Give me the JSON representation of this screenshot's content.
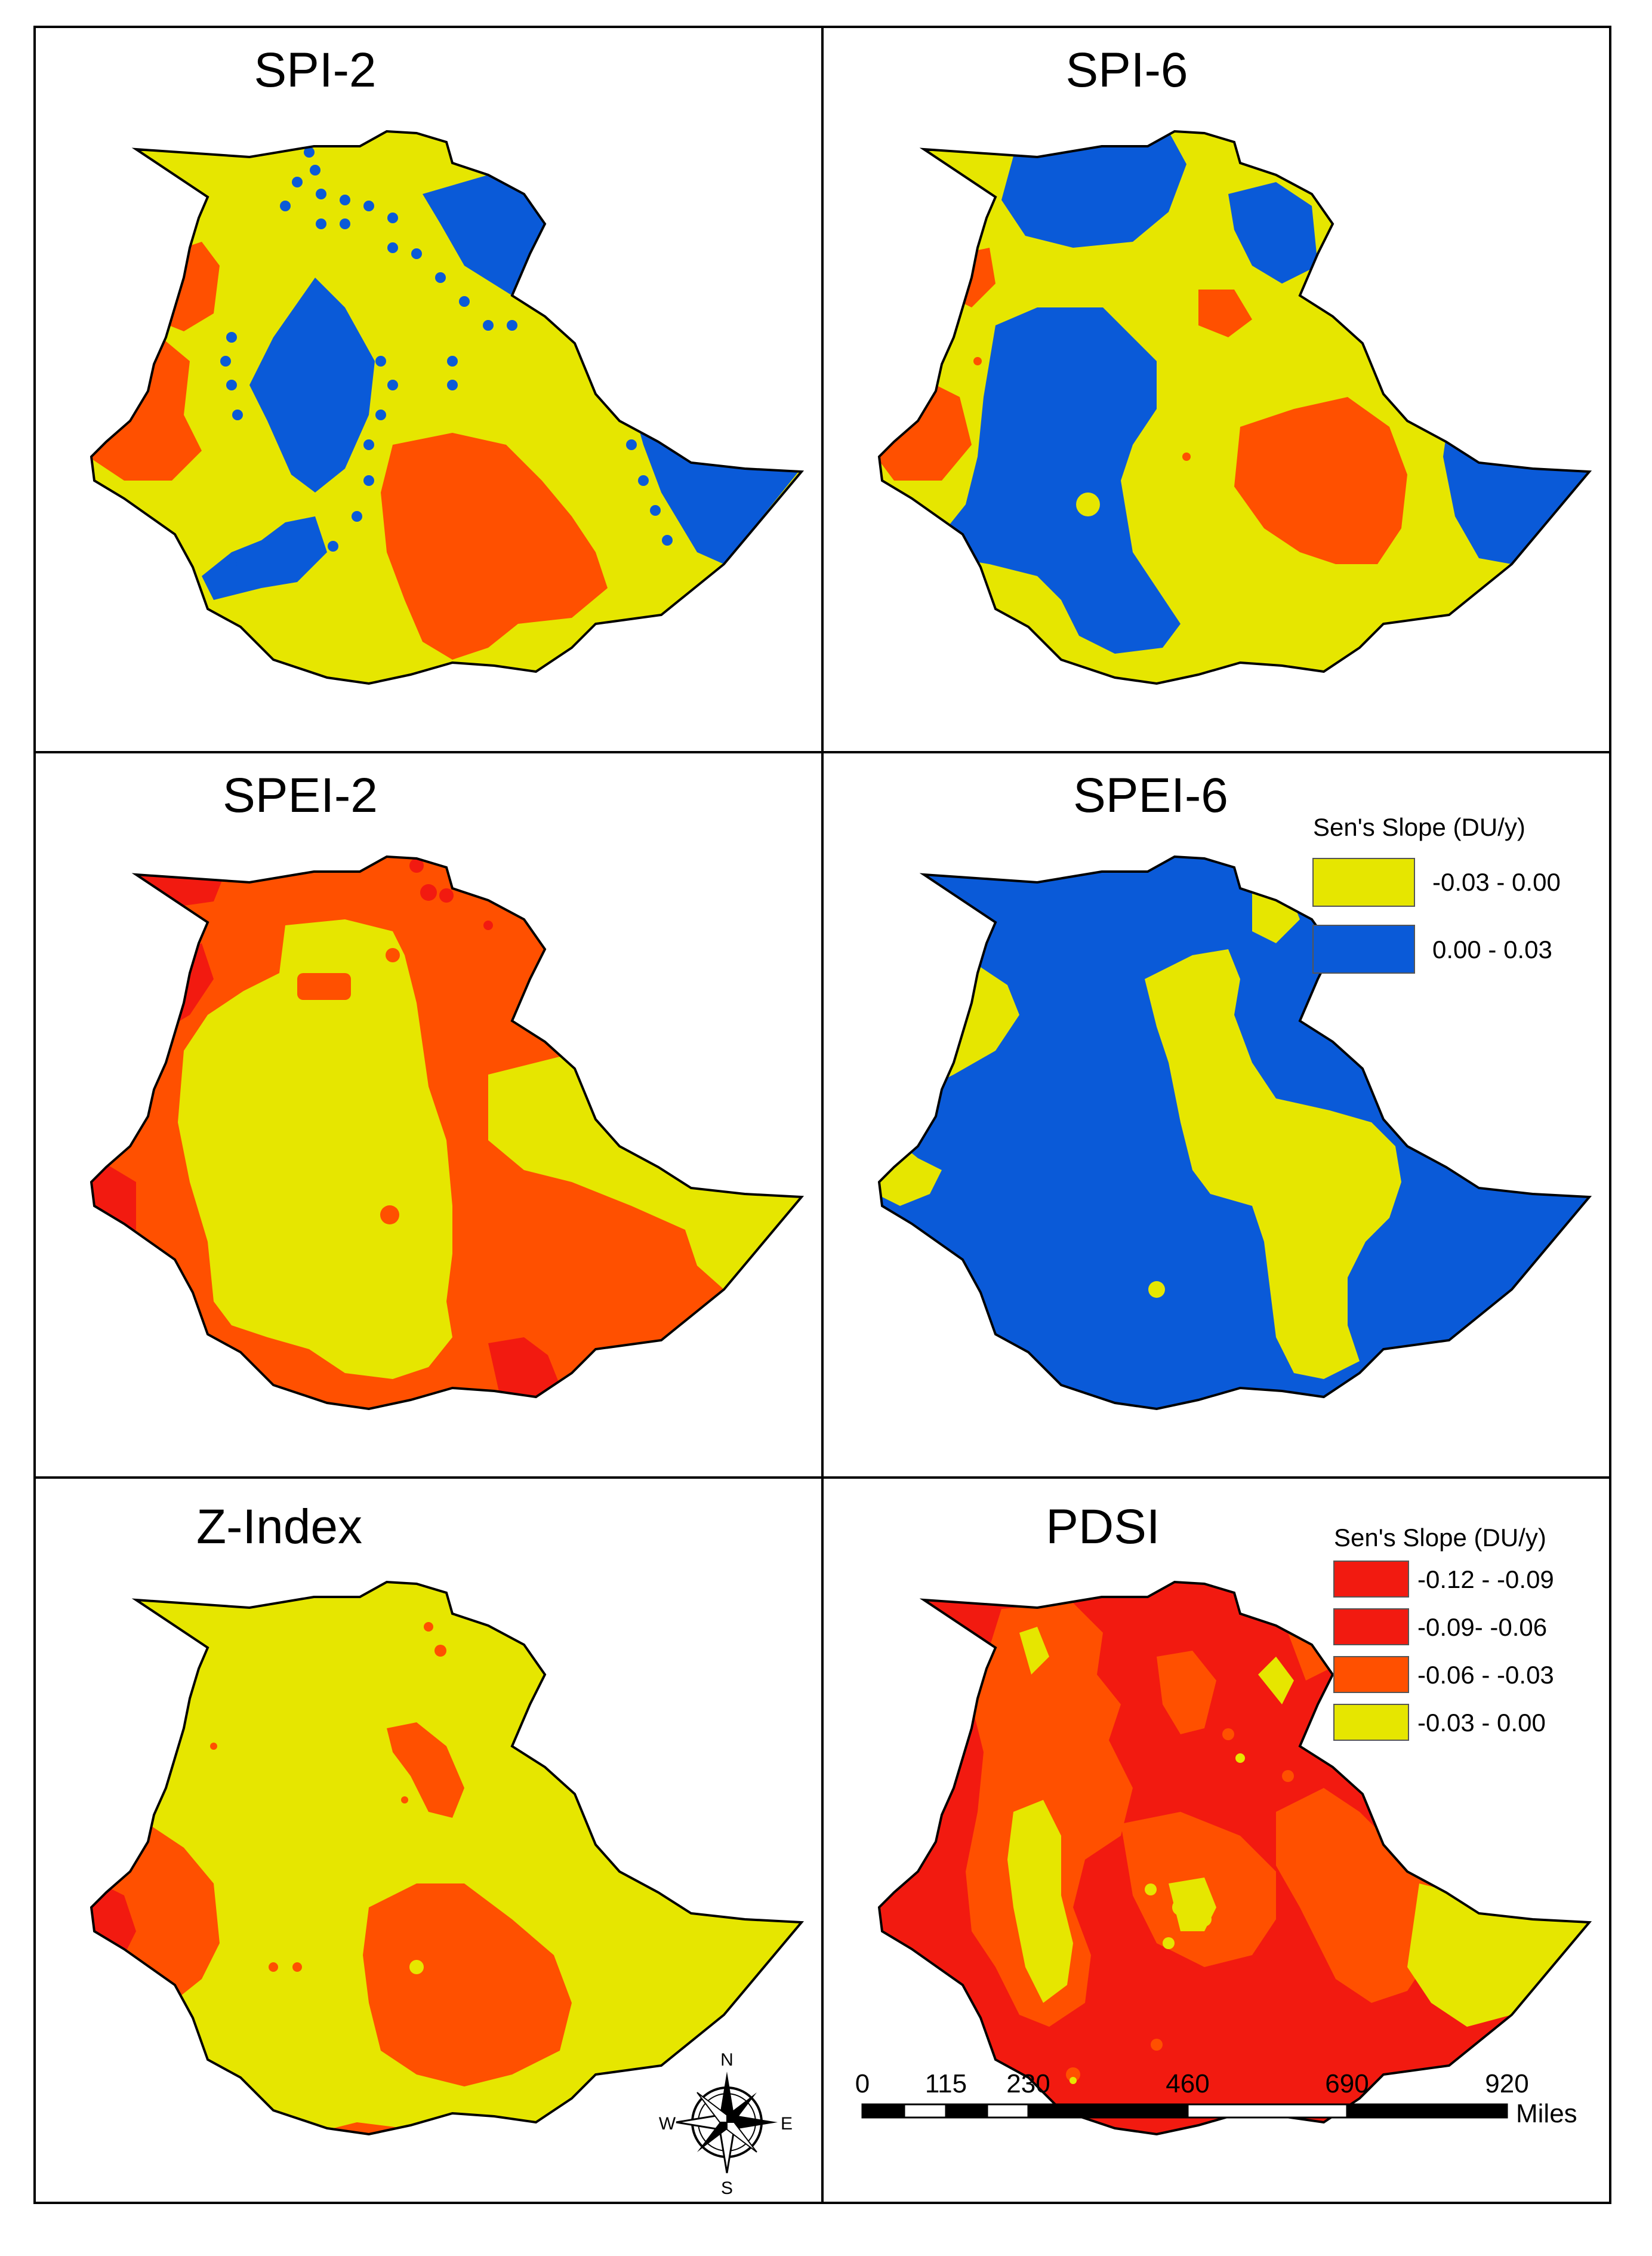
{
  "colors": {
    "yellow": "#e6e600",
    "blue": "#0a5ad8",
    "orange": "#ff5000",
    "red": "#f21a10",
    "outline": "#000000",
    "background": "#ffffff"
  },
  "panels": [
    {
      "title": "SPI-2"
    },
    {
      "title": "SPI-6"
    },
    {
      "title": "SPEI-2"
    },
    {
      "title": "SPEI-6"
    },
    {
      "title": "Z-Index"
    },
    {
      "title": "PDSI"
    }
  ],
  "legend_small": {
    "title": "Sen's Slope (DU/y)",
    "entries": [
      {
        "label": "-0.03 - 0.00",
        "color": "#e6e600"
      },
      {
        "label": "0.00 - 0.03",
        "color": "#0a5ad8"
      }
    ]
  },
  "legend_large": {
    "title": "Sen's Slope (DU/y)",
    "entries": [
      {
        "label": "-0.12 - -0.09",
        "color": "#f21a10"
      },
      {
        "label": "-0.09- -0.06",
        "color": "#f21a10"
      },
      {
        "label": "-0.06 - -0.03",
        "color": "#ff5000"
      },
      {
        "label": "-0.03 - 0.00",
        "color": "#e6e600"
      }
    ]
  },
  "compass": {
    "n": "N",
    "e": "E",
    "s": "S",
    "w": "W"
  },
  "scale_bar": {
    "ticks": [
      "0",
      "115",
      "230",
      "460",
      "690",
      "920"
    ],
    "unit": "Miles"
  }
}
